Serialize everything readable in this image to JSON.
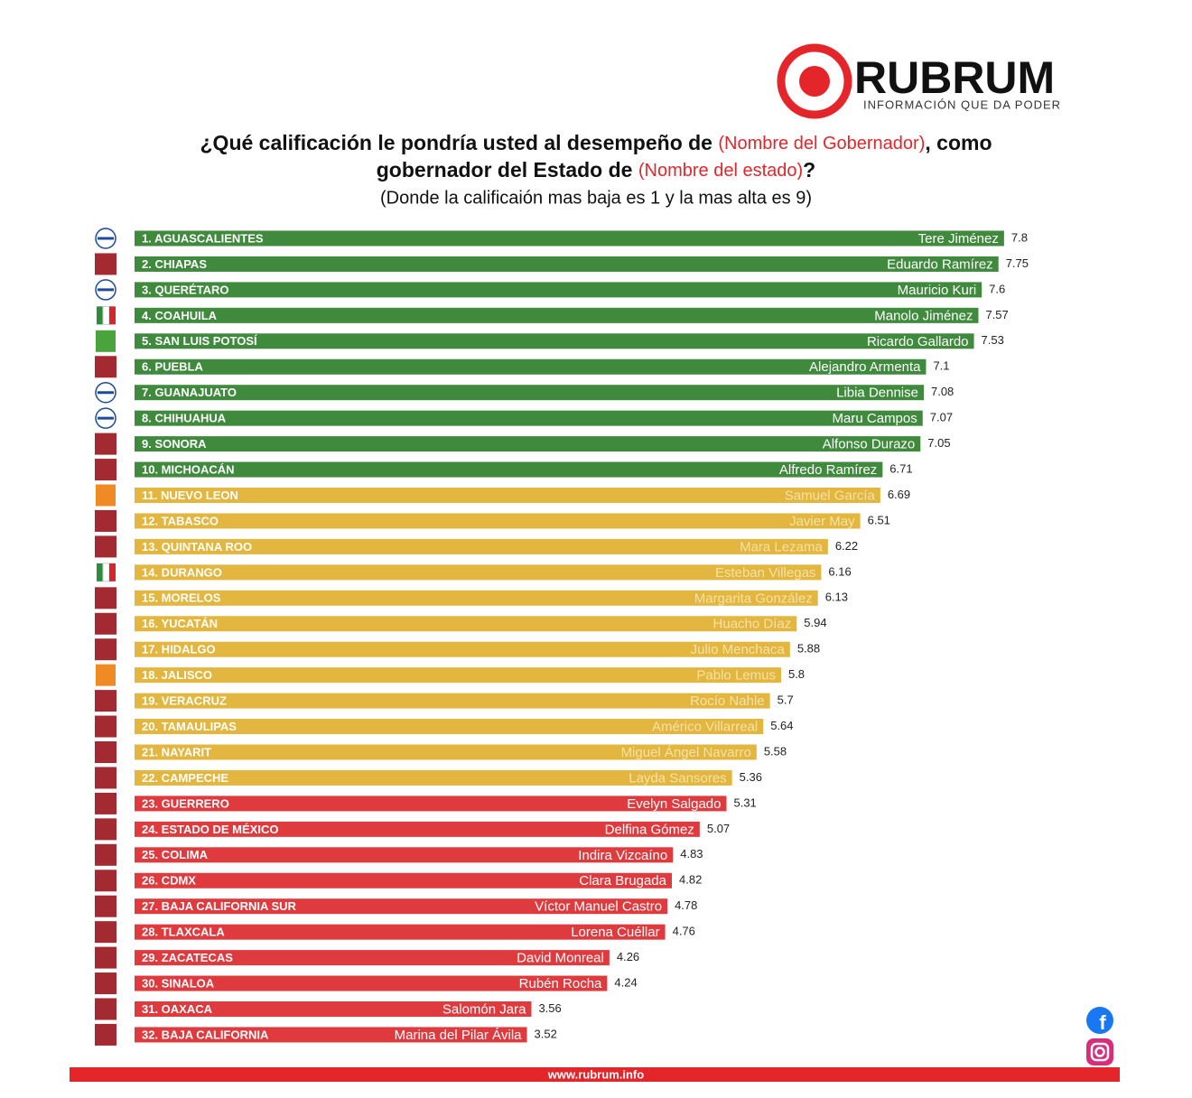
{
  "chart_data": {
    "type": "bar",
    "brand": "RUBRUM",
    "tagline": "INFORMACIÓN QUE DA PODER",
    "title": [
      "¿Qué calificación le pondría usted al desempeño de ",
      "(Nombre del Gobernador)",
      ", como",
      "gobernador del Estado de ",
      "(Nombre del estado)",
      "?"
    ],
    "subtitle": "(Donde la calificaión mas baja es 1 y la mas alta es 9)",
    "footer": "www.rubrum.info",
    "xlim": [
      0,
      9
    ],
    "categories": [
      "1. AGUASCALIENTES",
      "2. CHIAPAS",
      "3. QUERÉTARO",
      "4. COAHUILA",
      "5. SAN LUIS POTOSÍ",
      "6. PUEBLA",
      "7. GUANAJUATO",
      "8. CHIHUAHUA",
      "9. SONORA",
      "10. MICHOACÁN",
      "11. NUEVO LEON",
      "12. TABASCO",
      "13. QUINTANA ROO",
      "14. DURANGO",
      "15. MORELOS",
      "16. YUCATÁN",
      "17. HIDALGO",
      "18. JALISCO",
      "19. VERACRUZ",
      "20. TAMAULIPAS",
      "21. NAYARIT",
      "22. CAMPECHE",
      "23. GUERRERO",
      "24. ESTADO DE MÉXICO",
      "25. COLIMA",
      "26. CDMX",
      "27. BAJA CALIFORNIA SUR",
      "28. TLAXCALA",
      "29. ZACATECAS",
      "30. SINALOA",
      "31. OAXACA",
      "32. BAJA CALIFORNIA"
    ],
    "governors": [
      "Tere Jiménez",
      "Eduardo Ramírez",
      "Mauricio Kuri",
      "Manolo Jiménez",
      "Ricardo Gallardo",
      "Alejandro Armenta",
      "Libia Dennise",
      "Maru Campos",
      "Alfonso Durazo",
      "Alfredo Ramírez",
      "Samuel García",
      "Javier May",
      "Mara Lezama",
      "Esteban Villegas",
      "Margarita González",
      "Huacho Díaz",
      "Julio Menchaca",
      "Pablo Lemus",
      "Rocío Nahle",
      "Américo Villarreal",
      "Miguel Ángel Navarro",
      "Layda Sansores",
      "Evelyn Salgado",
      "Delfina Gómez",
      "Indira Vizcaíno",
      "Clara Brugada",
      "Víctor Manuel Castro",
      "Lorena Cuéllar",
      "David Monreal",
      "Rubén Rocha",
      "Salomón Jara",
      "Marina del Pilar Ávila"
    ],
    "values": [
      7.8,
      7.75,
      7.6,
      7.57,
      7.53,
      7.1,
      7.08,
      7.07,
      7.05,
      6.71,
      6.69,
      6.51,
      6.22,
      6.16,
      6.13,
      5.94,
      5.88,
      5.8,
      5.7,
      5.64,
      5.58,
      5.36,
      5.31,
      5.07,
      4.83,
      4.82,
      4.78,
      4.76,
      4.26,
      4.24,
      3.56,
      3.52
    ],
    "colors": [
      "#3f8a3d",
      "#3f8a3d",
      "#3f8a3d",
      "#3f8a3d",
      "#3f8a3d",
      "#3f8a3d",
      "#3f8a3d",
      "#3f8a3d",
      "#3f8a3d",
      "#3f8a3d",
      "#e2b63f",
      "#e2b63f",
      "#e2b63f",
      "#e2b63f",
      "#e2b63f",
      "#e2b63f",
      "#e2b63f",
      "#e2b63f",
      "#e2b63f",
      "#e2b63f",
      "#e2b63f",
      "#e2b63f",
      "#df3b3f",
      "#df3b3f",
      "#df3b3f",
      "#df3b3f",
      "#df3b3f",
      "#df3b3f",
      "#df3b3f",
      "#df3b3f",
      "#df3b3f",
      "#df3b3f"
    ]
  }
}
